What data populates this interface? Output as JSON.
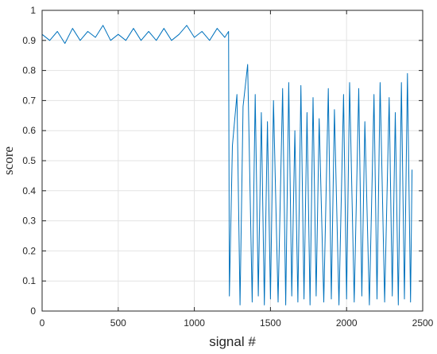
{
  "chart_data": {
    "type": "line",
    "xlabel": "signal #",
    "ylabel": "score",
    "xlim": [
      0,
      2500
    ],
    "ylim": [
      0,
      1
    ],
    "xticks": [
      0,
      500,
      1000,
      1500,
      2000,
      2500
    ],
    "yticks": [
      0,
      0.1,
      0.2,
      0.3,
      0.4,
      0.5,
      0.6,
      0.7,
      0.8,
      0.9,
      1
    ],
    "xtick_labels": [
      "0",
      "500",
      "1000",
      "1500",
      "2000",
      "2500"
    ],
    "ytick_labels": [
      "0",
      "0.1",
      "0.2",
      "0.3",
      "0.4",
      "0.5",
      "0.6",
      "0.7",
      "0.8",
      "0.9",
      "1"
    ],
    "grid": true,
    "line_color": "#0072BD",
    "series": [
      {
        "x": [
          0,
          50,
          100,
          150,
          200,
          250,
          300,
          350,
          400,
          450,
          500,
          550,
          600,
          650,
          700,
          750,
          800,
          850,
          900,
          950,
          1000,
          1050,
          1100,
          1150,
          1200,
          1225,
          1230,
          1250,
          1280,
          1300,
          1320,
          1350,
          1380,
          1400,
          1420,
          1440,
          1460,
          1480,
          1500,
          1520,
          1550,
          1580,
          1600,
          1620,
          1640,
          1660,
          1680,
          1700,
          1720,
          1740,
          1760,
          1780,
          1800,
          1820,
          1850,
          1880,
          1900,
          1920,
          1950,
          1980,
          2000,
          2020,
          2050,
          2080,
          2100,
          2120,
          2150,
          2180,
          2200,
          2220,
          2250,
          2280,
          2300,
          2320,
          2340,
          2360,
          2380,
          2400,
          2420,
          2430
        ],
        "y": [
          0.92,
          0.9,
          0.93,
          0.89,
          0.94,
          0.9,
          0.93,
          0.91,
          0.95,
          0.9,
          0.92,
          0.9,
          0.94,
          0.9,
          0.93,
          0.9,
          0.94,
          0.9,
          0.92,
          0.95,
          0.91,
          0.93,
          0.9,
          0.94,
          0.91,
          0.93,
          0.05,
          0.55,
          0.72,
          0.02,
          0.68,
          0.82,
          0.03,
          0.72,
          0.05,
          0.66,
          0.02,
          0.63,
          0.04,
          0.7,
          0.03,
          0.74,
          0.02,
          0.76,
          0.05,
          0.6,
          0.03,
          0.75,
          0.04,
          0.66,
          0.02,
          0.71,
          0.05,
          0.64,
          0.03,
          0.74,
          0.04,
          0.67,
          0.02,
          0.72,
          0.04,
          0.76,
          0.03,
          0.74,
          0.05,
          0.63,
          0.02,
          0.72,
          0.04,
          0.76,
          0.03,
          0.71,
          0.05,
          0.66,
          0.02,
          0.76,
          0.04,
          0.79,
          0.03,
          0.47
        ]
      }
    ]
  }
}
